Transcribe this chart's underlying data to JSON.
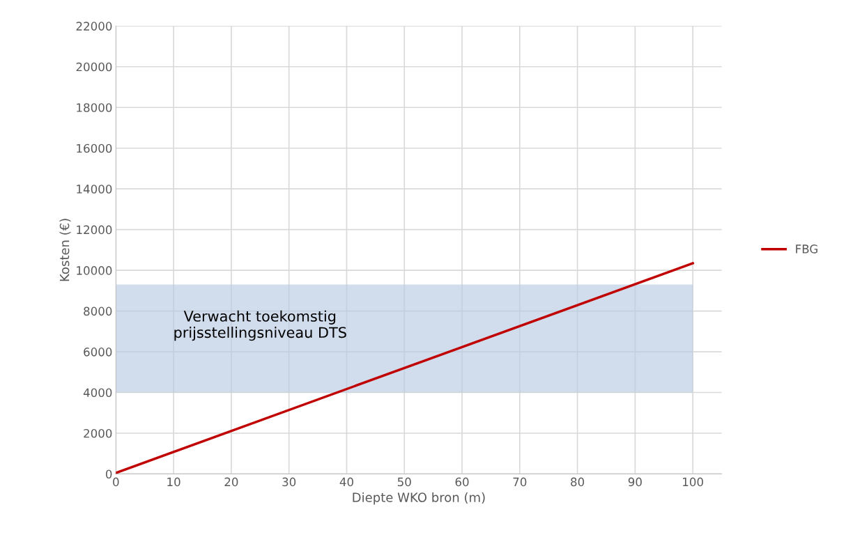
{
  "chart_data": {
    "type": "line",
    "xlabel": "Diepte WKO bron (m)",
    "ylabel": "Kosten (€)",
    "x": [
      0,
      100
    ],
    "series": [
      {
        "name": "FBG",
        "color": "#c00000",
        "values": [
          50,
          10350
        ]
      }
    ],
    "xlim": [
      0,
      105
    ],
    "xticks": [
      0,
      10,
      20,
      30,
      40,
      50,
      60,
      70,
      80,
      90,
      100
    ],
    "ylim": [
      0,
      22000
    ],
    "yticks": [
      0,
      2000,
      4000,
      6000,
      8000,
      10000,
      12000,
      14000,
      16000,
      18000,
      20000,
      22000
    ],
    "bands": [
      {
        "axis": "y",
        "from": 4000,
        "to": 9300,
        "label": "Verwacht toekomstig\nprijsstellingsniveau DTS",
        "color": "#b8cae3"
      }
    ],
    "grid": true,
    "legend": "right",
    "marker": "none",
    "line_style": "solid"
  }
}
